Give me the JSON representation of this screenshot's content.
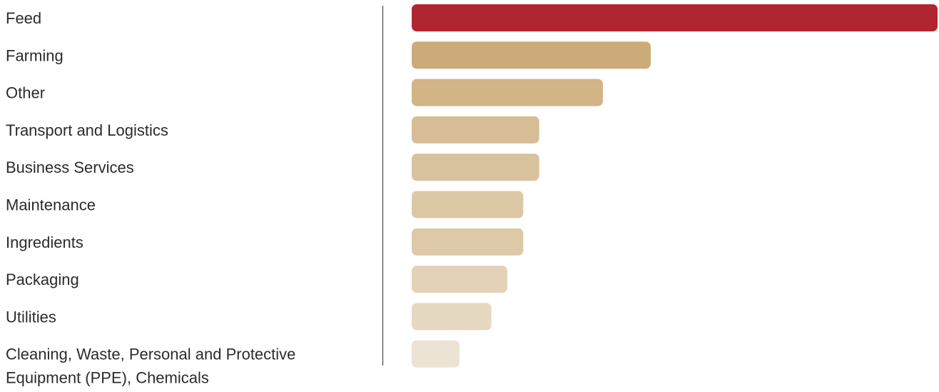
{
  "chart_data": {
    "type": "bar",
    "orientation": "horizontal",
    "title": "",
    "xlabel": "",
    "ylabel": "",
    "axis_ticks_shown": false,
    "grid": false,
    "legend": "none",
    "xlim": [
      0,
      33
    ],
    "categories": [
      [
        "Feed"
      ],
      [
        "Farming"
      ],
      [
        "Other"
      ],
      [
        "Transport and Logistics"
      ],
      [
        "Business Services"
      ],
      [
        "Maintenance"
      ],
      [
        "Ingredients"
      ],
      [
        "Packaging"
      ],
      [
        "Utilities"
      ],
      [
        "Cleaning, Waste, Personal and Protective",
        "Equipment (PPE), Chemicals"
      ]
    ],
    "values": [
      33,
      15,
      12,
      8,
      8,
      7,
      7,
      6,
      5,
      3
    ],
    "colors": {
      "highlight": "#b02530",
      "bars": [
        "#b02530",
        "#cbab78",
        "#d2b487",
        "#d6bd95",
        "#d9c29e",
        "#ddc8a6",
        "#ddc9a7",
        "#e3d2b7",
        "#e6d8c1",
        "#ede3d5"
      ],
      "axis_line": "#4a4a4a",
      "label_text": "#2b2b2b"
    }
  }
}
